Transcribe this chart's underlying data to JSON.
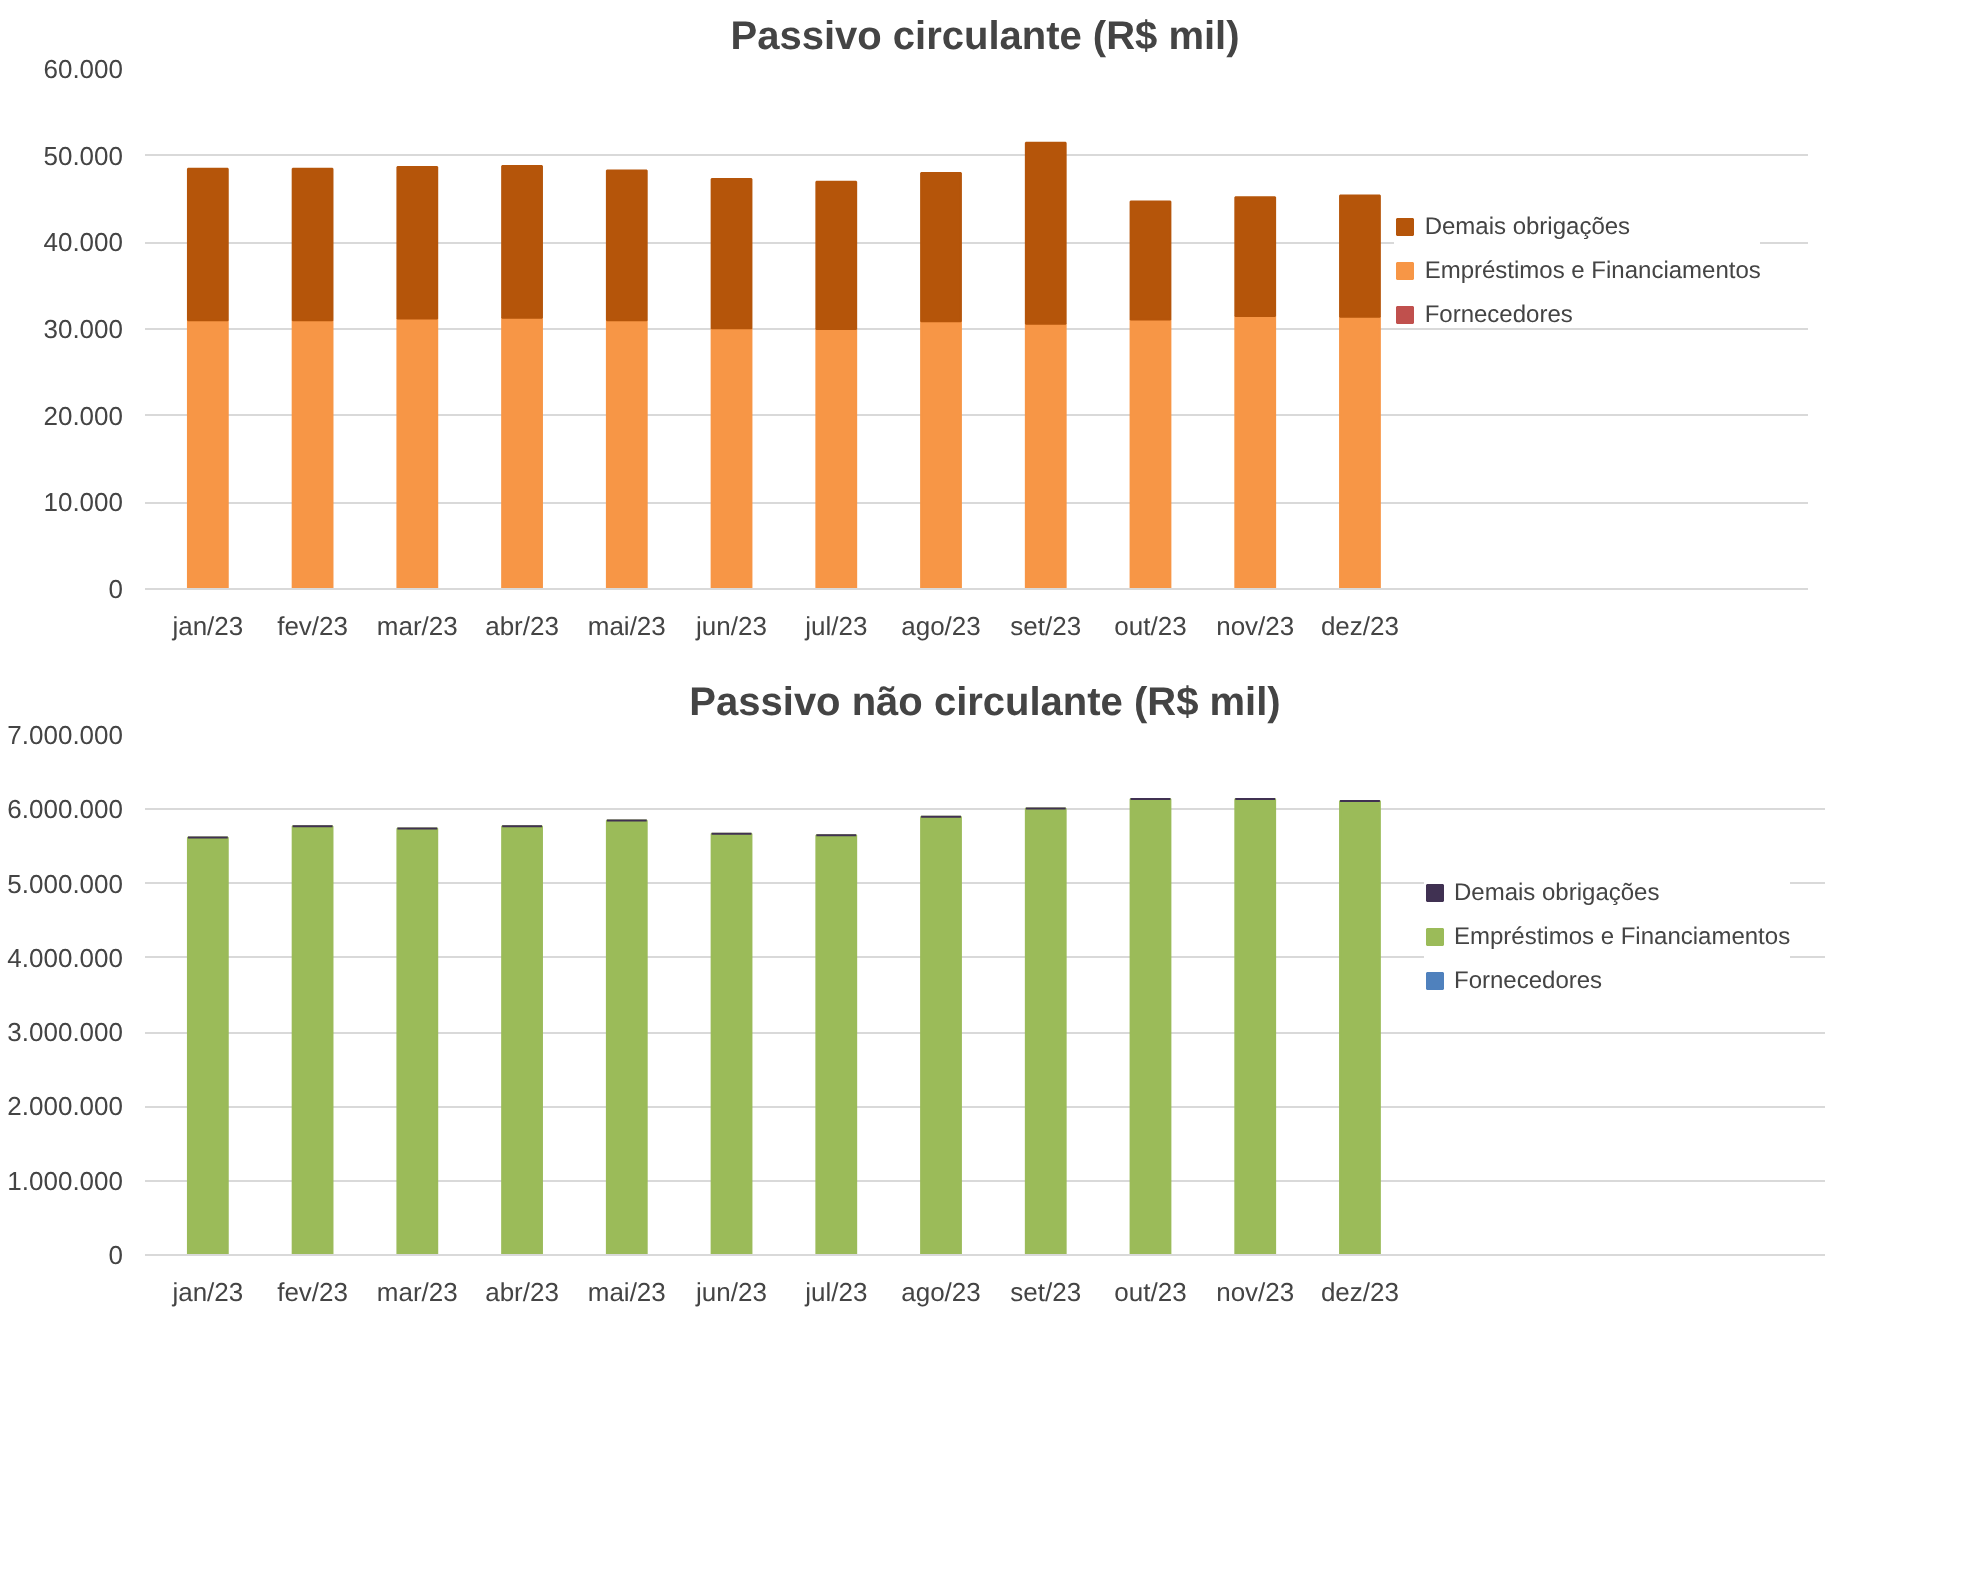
{
  "chart_data": [
    {
      "type": "bar",
      "title": "Passivo circulante (R$ mil)",
      "stacked": true,
      "grid": "y",
      "legend": "right",
      "categories": [
        "jan/23",
        "fev/23",
        "mar/23",
        "abr/23",
        "mai/23",
        "jun/23",
        "jul/23",
        "ago/23",
        "set/23",
        "out/23",
        "nov/23",
        "dez/23"
      ],
      "ylim": [
        0,
        60000
      ],
      "yticks": [
        {
          "value": 0,
          "label": "0"
        },
        {
          "value": 10000,
          "label": "10.000"
        },
        {
          "value": 20000,
          "label": "20.000"
        },
        {
          "value": 30000,
          "label": "30.000"
        },
        {
          "value": 40000,
          "label": "40.000"
        },
        {
          "value": 50000,
          "label": "50.000"
        },
        {
          "value": 60000,
          "label": "60.000"
        }
      ],
      "series": [
        {
          "name": "Fornecedores",
          "color": "#c0504d",
          "values": [
            0,
            0,
            0,
            0,
            0,
            0,
            0,
            0,
            0,
            0,
            0,
            0
          ]
        },
        {
          "name": "Empréstimos e Financiamentos",
          "color": "#f79646",
          "values": [
            31000,
            31000,
            31200,
            31300,
            31000,
            30100,
            30000,
            30900,
            30600,
            31100,
            31500,
            31400
          ]
        },
        {
          "name": "Demais obrigações",
          "color": "#b5550a",
          "values": [
            17500,
            17500,
            17500,
            17500,
            17300,
            17200,
            17000,
            17100,
            20900,
            13600,
            13700,
            14000
          ]
        }
      ]
    },
    {
      "type": "bar",
      "title": "Passivo não circulante (R$ mil)",
      "stacked": true,
      "grid": "y",
      "legend": "right",
      "categories": [
        "jan/23",
        "fev/23",
        "mar/23",
        "abr/23",
        "mai/23",
        "jun/23",
        "jul/23",
        "ago/23",
        "set/23",
        "out/23",
        "nov/23",
        "dez/23"
      ],
      "ylim": [
        0,
        7000000
      ],
      "yticks": [
        {
          "value": 0,
          "label": "0"
        },
        {
          "value": 1000000,
          "label": "1.000.000"
        },
        {
          "value": 2000000,
          "label": "2.000.000"
        },
        {
          "value": 3000000,
          "label": "3.000.000"
        },
        {
          "value": 4000000,
          "label": "4.000.000"
        },
        {
          "value": 5000000,
          "label": "5.000.000"
        },
        {
          "value": 6000000,
          "label": "6.000.000"
        },
        {
          "value": 7000000,
          "label": "7.000.000"
        }
      ],
      "series": [
        {
          "name": "Fornecedores",
          "color": "#4f81bd",
          "values": [
            0,
            0,
            0,
            0,
            0,
            0,
            0,
            0,
            0,
            0,
            0,
            0
          ]
        },
        {
          "name": "Empréstimos e Financiamentos",
          "color": "#9bbb59",
          "values": [
            5620000,
            5770000,
            5740000,
            5770000,
            5850000,
            5670000,
            5650000,
            5900000,
            6010000,
            6140000,
            6140000,
            6110000
          ]
        },
        {
          "name": "Demais obrigações",
          "color": "#403152",
          "values": [
            0,
            0,
            0,
            0,
            0,
            0,
            0,
            0,
            0,
            0,
            0,
            0
          ]
        }
      ]
    }
  ]
}
